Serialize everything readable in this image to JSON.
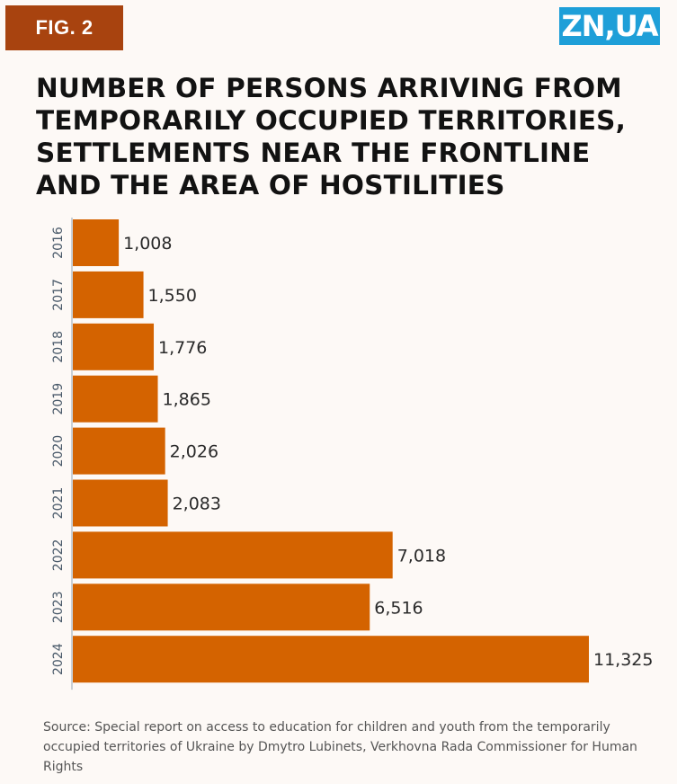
{
  "badge": {
    "label": "FIG. 2"
  },
  "logo": {
    "text": "ZN,UA"
  },
  "title_lines": [
    "NUMBER OF PERSONS ARRIVING FROM",
    "TEMPORARILY OCCUPIED TERRITORIES,",
    "SETTLEMENTS NEAR THE FRONTLINE",
    "AND THE AREA OF HOSTILITIES"
  ],
  "chart_data": {
    "type": "bar",
    "orientation": "horizontal",
    "categories": [
      "2016",
      "2017",
      "2018",
      "2019",
      "2020",
      "2021",
      "2022",
      "2023",
      "2024"
    ],
    "values": [
      1008,
      1550,
      1776,
      1865,
      2026,
      2083,
      7018,
      6516,
      11325
    ],
    "value_labels": [
      "1,008",
      "1,550",
      "1,776",
      "1,865",
      "2,026",
      "2,083",
      "7,018",
      "6,516",
      "11,325"
    ],
    "bar_color": "#d46300",
    "xlim": [
      0,
      11325
    ],
    "grid": false,
    "legend": "none"
  },
  "source": "Source: Special report on access to education for children and youth from the temporarily occupied territories of Ukraine by Dmytro Lubinets, Verkhovna Rada Commissioner for Human Rights",
  "colors": {
    "badge": "#a8430f",
    "logo": "#1e9fd8",
    "bar": "#d46300",
    "axis": "#b8c2cc",
    "background": "#fdf9f6"
  }
}
